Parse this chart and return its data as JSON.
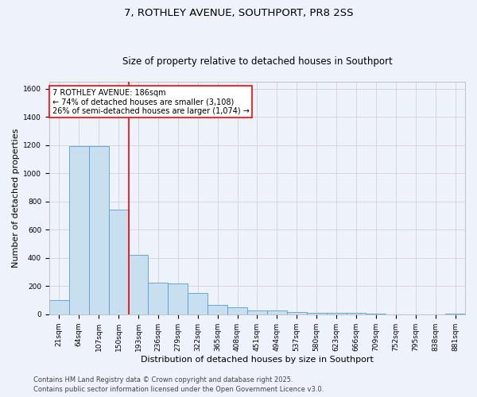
{
  "title_line1": "7, ROTHLEY AVENUE, SOUTHPORT, PR8 2SS",
  "title_line2": "Size of property relative to detached houses in Southport",
  "xlabel": "Distribution of detached houses by size in Southport",
  "ylabel": "Number of detached properties",
  "footnote1": "Contains HM Land Registry data © Crown copyright and database right 2025.",
  "footnote2": "Contains public sector information licensed under the Open Government Licence v3.0.",
  "categories": [
    "21sqm",
    "64sqm",
    "107sqm",
    "150sqm",
    "193sqm",
    "236sqm",
    "279sqm",
    "322sqm",
    "365sqm",
    "408sqm",
    "451sqm",
    "494sqm",
    "537sqm",
    "580sqm",
    "623sqm",
    "666sqm",
    "709sqm",
    "752sqm",
    "795sqm",
    "838sqm",
    "881sqm"
  ],
  "values": [
    100,
    1190,
    1190,
    740,
    420,
    225,
    220,
    150,
    65,
    50,
    30,
    30,
    15,
    10,
    10,
    10,
    5,
    0,
    0,
    0,
    5
  ],
  "bar_color": "#c8dff0",
  "bar_edge_color": "#5b9bd5",
  "vline_x_index": 4,
  "vline_color": "red",
  "annotation_text": "7 ROTHLEY AVENUE: 186sqm\n← 74% of detached houses are smaller (3,108)\n26% of semi-detached houses are larger (1,074) →",
  "annotation_box_color": "red",
  "annotation_text_color": "black",
  "ylim": [
    0,
    1650
  ],
  "yticks": [
    0,
    200,
    400,
    600,
    800,
    1000,
    1200,
    1400,
    1600
  ],
  "grid_color": "#cccccc",
  "bg_color": "#eef2fa",
  "title_fontsize": 9.5,
  "subtitle_fontsize": 8.5,
  "axis_label_fontsize": 8,
  "tick_fontsize": 6.5,
  "footnote_fontsize": 6,
  "annot_fontsize": 7
}
